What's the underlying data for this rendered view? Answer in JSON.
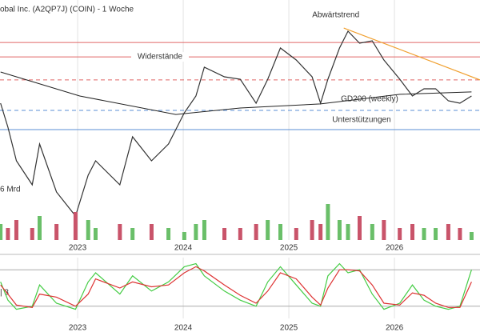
{
  "chart_data": [
    {
      "type": "line",
      "title": "obal Inc. (A2QP7J) (COIN) - 1 Woche",
      "volume_label": "6 Mrd",
      "xlim": [
        2022.265,
        2026.81
      ],
      "xticks": [
        2023,
        2024,
        2025,
        2026
      ],
      "ylim": [
        0,
        100
      ],
      "y2lim": [
        0,
        10
      ],
      "up_color": "#6abf69",
      "down_color": "#c9546a",
      "x": [
        2022.27,
        2022.34,
        2022.42,
        2022.57,
        2022.64,
        2022.8,
        2022.98,
        2023.1,
        2023.17,
        2023.4,
        2023.52,
        2023.7,
        2023.86,
        2024.01,
        2024.12,
        2024.2,
        2024.39,
        2024.54,
        2024.69,
        2024.8,
        2024.92,
        2025.07,
        2025.22,
        2025.3,
        2025.37,
        2025.48,
        2025.56,
        2025.67,
        2025.79,
        2025.9,
        2026.05,
        2026.17,
        2026.28,
        2026.39,
        2026.51,
        2026.62,
        2026.73
      ],
      "series": [
        {
          "color": "#333333",
          "values": [
            57,
            47,
            33,
            23,
            40,
            20,
            10,
            27,
            33,
            23,
            43,
            33,
            40,
            53,
            60,
            72,
            68,
            67,
            57,
            67,
            80,
            75,
            68,
            57,
            67,
            80,
            87,
            82,
            83,
            75,
            67,
            60,
            63,
            63,
            58,
            57,
            60
          ]
        },
        {
          "axis": "y2",
          "type": "bar",
          "values": [
            4,
            3,
            5,
            3,
            6,
            4,
            7,
            5,
            3,
            4,
            3,
            4,
            3,
            2,
            4,
            5,
            3,
            3,
            4,
            5,
            4,
            3,
            5,
            4,
            9,
            5,
            4,
            6,
            4,
            5,
            3,
            4,
            3,
            3,
            4,
            3,
            2
          ]
        }
      ],
      "gd200": {
        "name": "GD200 (weekly)",
        "color": "#222222",
        "x": [
          2022.27,
          2023.02,
          2023.93,
          2024.54,
          2025.3,
          2026.05,
          2026.73
        ],
        "values": [
          70,
          60,
          52.3,
          55,
          56.7,
          60.7,
          61.7
        ]
      },
      "levels": [
        {
          "value": 82.3,
          "color": "#e06666",
          "style": "solid"
        },
        {
          "value": 76.3,
          "color": "#e06666",
          "style": "solid",
          "label": "Widerstände"
        },
        {
          "value": 66.7,
          "color": "#e06666",
          "style": "dashed"
        },
        {
          "value": 54,
          "color": "#5b8fd6",
          "style": "dashed"
        },
        {
          "value": 46,
          "color": "#5b8fd6",
          "style": "solid",
          "label": "Unterstützungen"
        }
      ],
      "trend": {
        "label": "Abwärtstrend",
        "color": "#f0a030",
        "x": [
          2025.52,
          2026.81
        ],
        "values": [
          88.3,
          66.7
        ]
      }
    },
    {
      "type": "line",
      "indicator_label": "| 3",
      "xlim": [
        2022.265,
        2026.81
      ],
      "xticks": [
        2023,
        2024,
        2025,
        2026
      ],
      "ylim": [
        0,
        100
      ],
      "hlines": [
        20,
        80
      ],
      "x": [
        2022.27,
        2022.34,
        2022.42,
        2022.57,
        2022.64,
        2022.8,
        2022.98,
        2023.1,
        2023.17,
        2023.4,
        2023.52,
        2023.7,
        2023.86,
        2024.01,
        2024.12,
        2024.2,
        2024.39,
        2024.54,
        2024.69,
        2024.8,
        2024.92,
        2025.07,
        2025.22,
        2025.3,
        2025.37,
        2025.48,
        2025.56,
        2025.67,
        2025.79,
        2025.9,
        2026.05,
        2026.17,
        2026.28,
        2026.39,
        2026.51,
        2026.62,
        2026.73
      ],
      "series": [
        {
          "color": "#44cc44",
          "values": [
            60,
            30,
            15,
            20,
            55,
            25,
            15,
            60,
            75,
            40,
            70,
            45,
            60,
            85,
            90,
            70,
            45,
            30,
            20,
            60,
            85,
            55,
            25,
            20,
            70,
            90,
            75,
            80,
            40,
            15,
            25,
            55,
            30,
            20,
            15,
            20,
            80
          ]
        },
        {
          "color": "#dd3333",
          "values": [
            55,
            40,
            22,
            18,
            40,
            35,
            20,
            40,
            65,
            50,
            60,
            52,
            55,
            75,
            85,
            78,
            55,
            38,
            25,
            45,
            75,
            65,
            35,
            22,
            50,
            80,
            80,
            78,
            55,
            25,
            22,
            42,
            38,
            25,
            18,
            18,
            60
          ]
        }
      ]
    }
  ]
}
